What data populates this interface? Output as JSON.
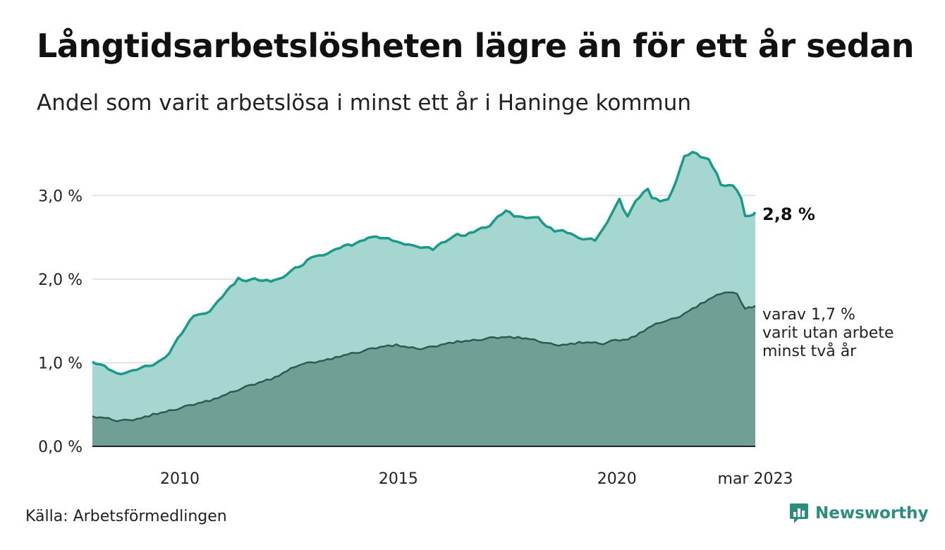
{
  "title": "Långtidsarbetslösheten lägre än för ett år sedan",
  "subtitle": "Andel som varit arbetslösa i minst ett år i Haninge kommun",
  "source": "Källa: Arbetsförmedlingen",
  "brand": "Newsworthy",
  "chart_data": {
    "type": "area",
    "x_start": 2008.0,
    "x_step_months": 1,
    "xlim": [
      2008.0,
      2023.167
    ],
    "ylim": [
      0,
      0.035
    ],
    "y_ticks": [
      {
        "value": 0.0,
        "label": "0,0 %"
      },
      {
        "value": 0.01,
        "label": "1,0 %"
      },
      {
        "value": 0.02,
        "label": "2,0 %"
      },
      {
        "value": 0.03,
        "label": "3,0 %"
      }
    ],
    "x_ticks": [
      {
        "value": 2010,
        "label": "2010"
      },
      {
        "value": 2015,
        "label": "2015"
      },
      {
        "value": 2020,
        "label": "2020"
      },
      {
        "value": 2023.167,
        "label": "mar 2023"
      }
    ],
    "grid": true,
    "annotations": {
      "main": "2,8 %",
      "sub": [
        "varav 1,7 %",
        "varit utan arbete",
        "minst två år"
      ]
    },
    "series": [
      {
        "color": "#1b998b",
        "fill": "#a5d6cf",
        "anchors": [
          [
            2008.0,
            1.0
          ],
          [
            2008.2,
            0.98
          ],
          [
            2008.4,
            0.93
          ],
          [
            2008.6,
            0.87
          ],
          [
            2008.8,
            0.88
          ],
          [
            2009.0,
            0.9
          ],
          [
            2009.2,
            0.94
          ],
          [
            2009.5,
            0.98
          ],
          [
            2009.7,
            1.03
          ],
          [
            2009.9,
            1.12
          ],
          [
            2010.1,
            1.28
          ],
          [
            2010.3,
            1.42
          ],
          [
            2010.5,
            1.57
          ],
          [
            2010.7,
            1.58
          ],
          [
            2010.9,
            1.62
          ],
          [
            2011.1,
            1.73
          ],
          [
            2011.3,
            1.85
          ],
          [
            2011.5,
            1.95
          ],
          [
            2011.6,
            2.01
          ],
          [
            2011.8,
            1.98
          ],
          [
            2012.0,
            2.0
          ],
          [
            2012.2,
            1.98
          ],
          [
            2012.4,
            1.98
          ],
          [
            2012.6,
            2.0
          ],
          [
            2012.8,
            2.06
          ],
          [
            2013.0,
            2.13
          ],
          [
            2013.2,
            2.17
          ],
          [
            2013.4,
            2.27
          ],
          [
            2013.6,
            2.28
          ],
          [
            2013.8,
            2.31
          ],
          [
            2014.0,
            2.35
          ],
          [
            2014.2,
            2.4
          ],
          [
            2014.4,
            2.41
          ],
          [
            2014.6,
            2.45
          ],
          [
            2014.8,
            2.5
          ],
          [
            2015.0,
            2.5
          ],
          [
            2015.2,
            2.49
          ],
          [
            2015.4,
            2.47
          ],
          [
            2015.6,
            2.43
          ],
          [
            2015.8,
            2.42
          ],
          [
            2016.0,
            2.38
          ],
          [
            2016.2,
            2.38
          ],
          [
            2016.4,
            2.36
          ],
          [
            2016.6,
            2.43
          ],
          [
            2016.8,
            2.48
          ],
          [
            2017.0,
            2.53
          ],
          [
            2017.2,
            2.52
          ],
          [
            2017.4,
            2.57
          ],
          [
            2017.6,
            2.61
          ],
          [
            2017.8,
            2.64
          ],
          [
            2018.0,
            2.74
          ],
          [
            2018.2,
            2.82
          ],
          [
            2018.4,
            2.76
          ],
          [
            2018.6,
            2.74
          ],
          [
            2018.8,
            2.74
          ],
          [
            2019.0,
            2.73
          ],
          [
            2019.2,
            2.63
          ],
          [
            2019.4,
            2.58
          ],
          [
            2019.6,
            2.58
          ],
          [
            2019.8,
            2.55
          ],
          [
            2020.0,
            2.48
          ],
          [
            2020.2,
            2.48
          ],
          [
            2020.4,
            2.47
          ],
          [
            2020.6,
            2.6
          ],
          [
            2020.8,
            2.78
          ],
          [
            2021.0,
            2.95
          ],
          [
            2021.1,
            2.83
          ],
          [
            2021.2,
            2.76
          ],
          [
            2021.4,
            2.93
          ],
          [
            2021.6,
            3.05
          ],
          [
            2021.7,
            3.07
          ],
          [
            2021.8,
            2.97
          ],
          [
            2022.0,
            2.94
          ],
          [
            2022.2,
            2.95
          ],
          [
            2022.4,
            3.18
          ],
          [
            2022.6,
            3.46
          ],
          [
            2022.8,
            3.52
          ],
          [
            2023.0,
            3.47
          ],
          [
            2023.2,
            3.43
          ],
          [
            2023.4,
            3.27
          ],
          [
            2023.5,
            3.12
          ],
          [
            2023.8,
            3.12
          ],
          [
            2024.0,
            2.98
          ],
          [
            2024.1,
            2.75
          ],
          [
            2024.2,
            2.76
          ],
          [
            2024.3,
            2.76
          ],
          [
            2024.35,
            2.8
          ]
        ]
      },
      {
        "color": "#2e5a52",
        "fill": "#6f9f95",
        "anchors": [
          [
            2008.0,
            0.35
          ],
          [
            2008.3,
            0.34
          ],
          [
            2008.6,
            0.31
          ],
          [
            2008.9,
            0.31
          ],
          [
            2009.2,
            0.34
          ],
          [
            2009.5,
            0.38
          ],
          [
            2009.8,
            0.41
          ],
          [
            2010.1,
            0.45
          ],
          [
            2010.4,
            0.49
          ],
          [
            2010.7,
            0.53
          ],
          [
            2011.0,
            0.56
          ],
          [
            2011.3,
            0.62
          ],
          [
            2011.6,
            0.68
          ],
          [
            2011.9,
            0.73
          ],
          [
            2012.2,
            0.78
          ],
          [
            2012.5,
            0.82
          ],
          [
            2012.8,
            0.9
          ],
          [
            2013.1,
            0.98
          ],
          [
            2013.4,
            1.0
          ],
          [
            2013.7,
            1.03
          ],
          [
            2014.0,
            1.06
          ],
          [
            2014.3,
            1.1
          ],
          [
            2014.6,
            1.13
          ],
          [
            2014.9,
            1.17
          ],
          [
            2015.2,
            1.2
          ],
          [
            2015.5,
            1.21
          ],
          [
            2015.8,
            1.18
          ],
          [
            2016.1,
            1.17
          ],
          [
            2016.4,
            1.19
          ],
          [
            2016.7,
            1.23
          ],
          [
            2017.0,
            1.25
          ],
          [
            2017.3,
            1.26
          ],
          [
            2017.6,
            1.28
          ],
          [
            2017.9,
            1.3
          ],
          [
            2018.2,
            1.31
          ],
          [
            2018.5,
            1.3
          ],
          [
            2018.8,
            1.28
          ],
          [
            2019.1,
            1.25
          ],
          [
            2019.4,
            1.21
          ],
          [
            2019.7,
            1.22
          ],
          [
            2020.0,
            1.24
          ],
          [
            2020.3,
            1.24
          ],
          [
            2020.6,
            1.23
          ],
          [
            2020.9,
            1.27
          ],
          [
            2021.2,
            1.28
          ],
          [
            2021.5,
            1.35
          ],
          [
            2021.8,
            1.44
          ],
          [
            2022.1,
            1.5
          ],
          [
            2022.4,
            1.53
          ],
          [
            2022.7,
            1.62
          ],
          [
            2023.0,
            1.7
          ],
          [
            2023.3,
            1.78
          ],
          [
            2023.6,
            1.85
          ],
          [
            2023.9,
            1.82
          ],
          [
            2024.1,
            1.65
          ],
          [
            2024.35,
            1.68
          ]
        ]
      }
    ]
  }
}
